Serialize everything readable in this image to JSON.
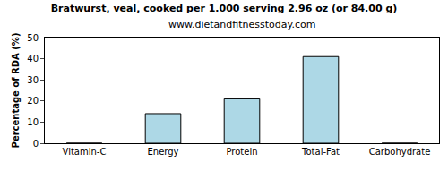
{
  "chart_data": {
    "type": "bar",
    "title": "Bratwurst, veal, cooked per 1.000 serving 2.96 oz (or 84.00 g)",
    "subtitle": "www.dietandfitnesstoday.com",
    "y_label": "Percentage of RDA (%)",
    "categories": [
      "Vitamin-C",
      "Energy",
      "Protein",
      "Total-Fat",
      "Carbohydrate"
    ],
    "values": [
      0,
      14,
      21,
      41,
      0
    ],
    "color": "#add8e6",
    "ylim": [
      0,
      50
    ],
    "yticks": [
      0,
      10,
      20,
      30,
      40,
      50
    ],
    "grid": false
  }
}
